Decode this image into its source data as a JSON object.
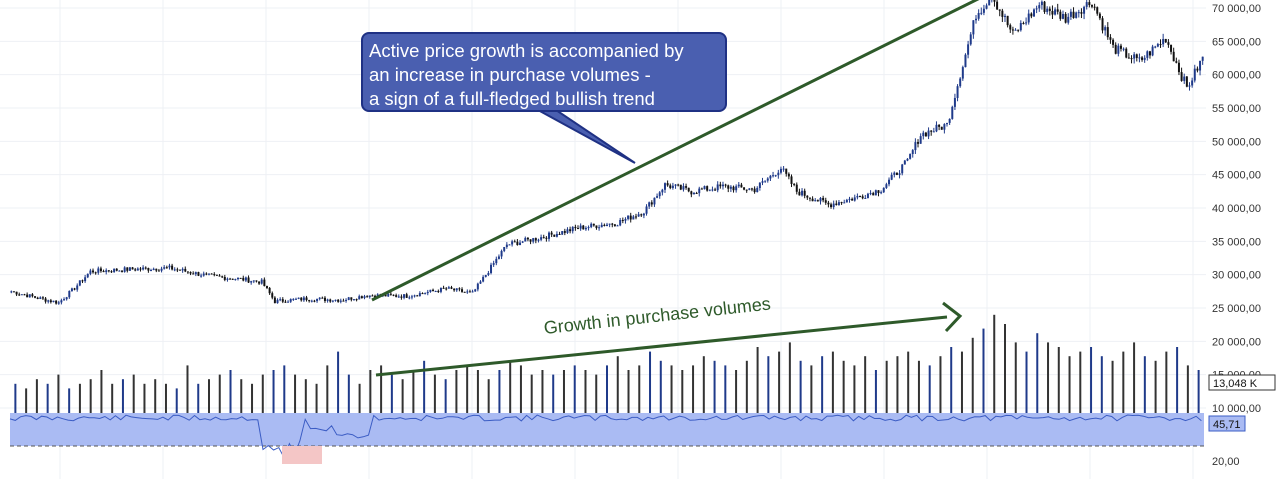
{
  "chart_data": {
    "type": "candlestick",
    "panes": [
      "price",
      "volume",
      "indicator"
    ],
    "y_axis": {
      "ticks": [
        "70 000,00",
        "65 000,00",
        "60 000,00",
        "55 000,00",
        "50 000,00",
        "45 000,00",
        "40 000,00",
        "35 000,00",
        "30 000,00",
        "25 000,00",
        "20 000,00",
        "15 000,00",
        "10 000,00"
      ],
      "price_range": [
        10000,
        72000
      ]
    },
    "price_series_sketch": [
      {
        "i": 0,
        "c": 27500
      },
      {
        "i": 10,
        "c": 26500
      },
      {
        "i": 18,
        "c": 25800
      },
      {
        "i": 24,
        "c": 28000
      },
      {
        "i": 30,
        "c": 30500
      },
      {
        "i": 45,
        "c": 30800
      },
      {
        "i": 60,
        "c": 31000
      },
      {
        "i": 75,
        "c": 29800
      },
      {
        "i": 88,
        "c": 29300
      },
      {
        "i": 95,
        "c": 28900
      },
      {
        "i": 100,
        "c": 26000
      },
      {
        "i": 112,
        "c": 26400
      },
      {
        "i": 125,
        "c": 26200
      },
      {
        "i": 135,
        "c": 26900
      },
      {
        "i": 150,
        "c": 26800
      },
      {
        "i": 165,
        "c": 27900
      },
      {
        "i": 175,
        "c": 27200
      },
      {
        "i": 180,
        "c": 30000
      },
      {
        "i": 188,
        "c": 34500
      },
      {
        "i": 200,
        "c": 35500
      },
      {
        "i": 215,
        "c": 37000
      },
      {
        "i": 230,
        "c": 37800
      },
      {
        "i": 240,
        "c": 39500
      },
      {
        "i": 248,
        "c": 43500
      },
      {
        "i": 258,
        "c": 42500
      },
      {
        "i": 270,
        "c": 43200
      },
      {
        "i": 282,
        "c": 42800
      },
      {
        "i": 292,
        "c": 46000
      },
      {
        "i": 298,
        "c": 42500
      },
      {
        "i": 310,
        "c": 40500
      },
      {
        "i": 320,
        "c": 41500
      },
      {
        "i": 330,
        "c": 42800
      },
      {
        "i": 340,
        "c": 47000
      },
      {
        "i": 345,
        "c": 51000
      },
      {
        "i": 355,
        "c": 52500
      },
      {
        "i": 360,
        "c": 60000
      },
      {
        "i": 366,
        "c": 69000
      },
      {
        "i": 372,
        "c": 72000
      },
      {
        "i": 380,
        "c": 66000
      },
      {
        "i": 390,
        "c": 70500
      },
      {
        "i": 400,
        "c": 68500
      },
      {
        "i": 410,
        "c": 71000
      },
      {
        "i": 418,
        "c": 64000
      },
      {
        "i": 428,
        "c": 62000
      },
      {
        "i": 438,
        "c": 65500
      },
      {
        "i": 446,
        "c": 58000
      },
      {
        "i": 452,
        "c": 62500
      }
    ],
    "volume_values_k": [
      12,
      11,
      13,
      12,
      14,
      11,
      12,
      13,
      15,
      12,
      13,
      14,
      12,
      13,
      12,
      11,
      16,
      12,
      13,
      14,
      15,
      13,
      12,
      14,
      15,
      16,
      14,
      13,
      12,
      16,
      19,
      14,
      12,
      15,
      16,
      14,
      13,
      15,
      17,
      14,
      13,
      15,
      16,
      15,
      13,
      15,
      17,
      16,
      14,
      15,
      14,
      15,
      16,
      15,
      14,
      16,
      18,
      15,
      16,
      19,
      17,
      16,
      15,
      16,
      18,
      17,
      16,
      15,
      17,
      20,
      18,
      19,
      21,
      17,
      16,
      18,
      19,
      17,
      16,
      18,
      15,
      17,
      18,
      19,
      17,
      16,
      18,
      20,
      19,
      22,
      24,
      27,
      25,
      21,
      19,
      23,
      21,
      20,
      18,
      19,
      20,
      18,
      17,
      19,
      21,
      18,
      17,
      19,
      20,
      16,
      15
    ],
    "volume_last": "13,048 K",
    "indicator_last": "45,71",
    "indicator_tick": "20,00",
    "annotations": {
      "callout_lines": [
        "Active price growth is accompanied by",
        "an increase in purchase volumes -",
        "a sign of a full-fledged bullish trend"
      ],
      "volume_label": "Growth in purchase volumes"
    },
    "colors": {
      "up": "#1f3a8a",
      "down": "#111111",
      "trend_line": "#2e5a2a",
      "indicator_fill": "#aabbf3",
      "indicator_line": "#3b5cc4",
      "callout_bg": "#4a5fb0",
      "oversold_fill": "#f4c6c6"
    },
    "grid": true
  }
}
